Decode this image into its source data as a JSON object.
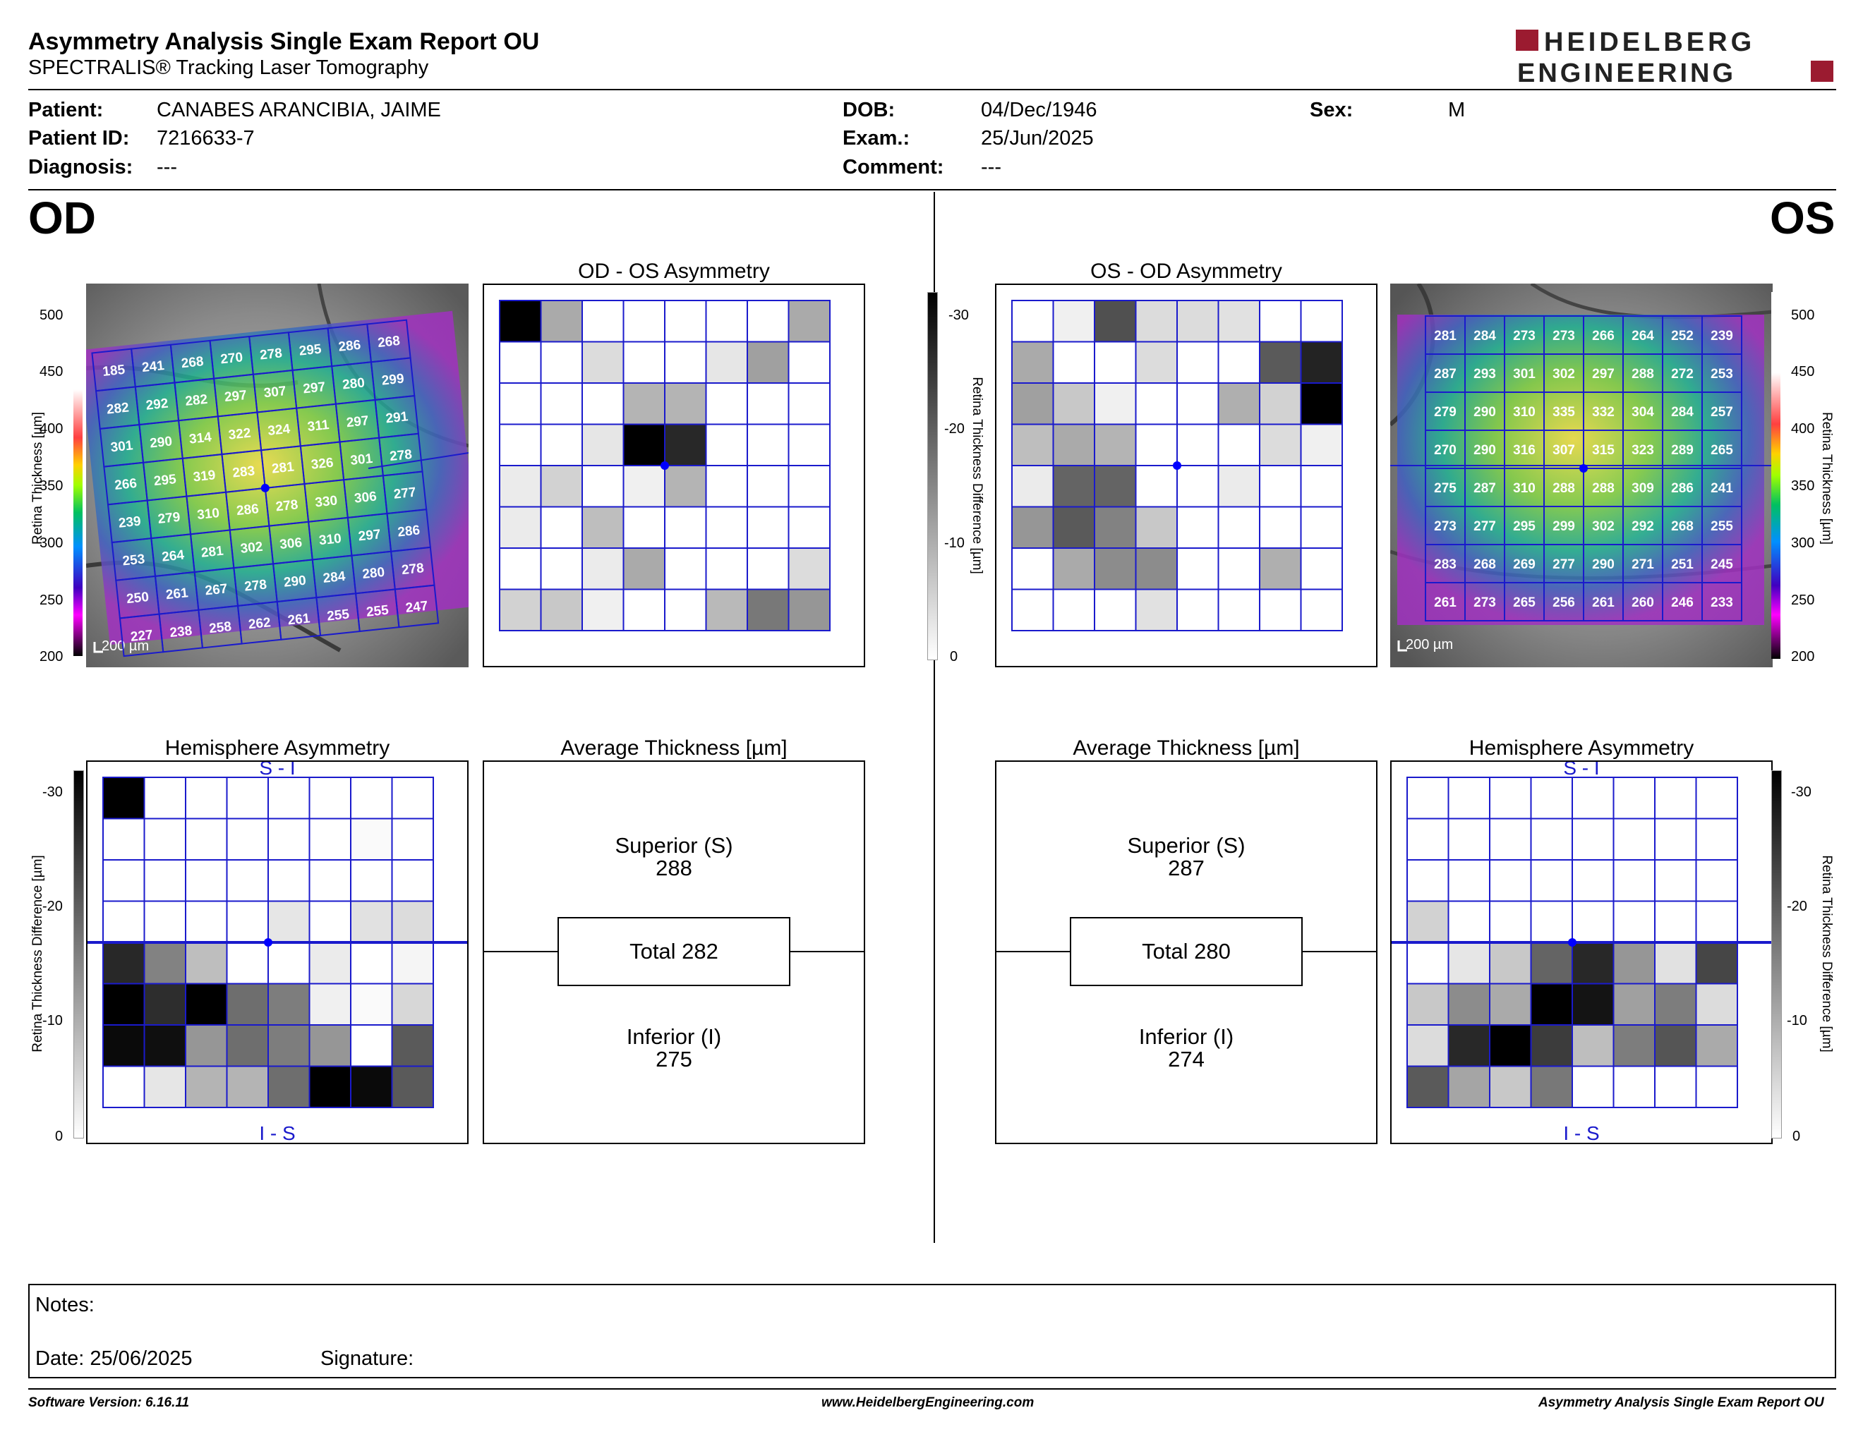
{
  "header": {
    "title": "Asymmetry Analysis Single Exam Report OU",
    "subtitle": "SPECTRALIS® Tracking Laser Tomography",
    "logo_line1": "HEIDELBERG",
    "logo_line2": "ENGINEERING",
    "brand_color": "#9b1b30"
  },
  "patient": {
    "patient_label": "Patient:",
    "patient_value": "CANABES ARANCIBIA, JAIME",
    "patient_id_label": "Patient ID:",
    "patient_id_value": "7216633-7",
    "diagnosis_label": "Diagnosis:",
    "diagnosis_value": "---",
    "dob_label": "DOB:",
    "dob_value": "04/Dec/1946",
    "exam_label": "Exam.:",
    "exam_value": "25/Jun/2025",
    "comment_label": "Comment:",
    "comment_value": "---",
    "sex_label": "Sex:",
    "sex_value": "M"
  },
  "od": {
    "eye_label": "OD",
    "scale_bar": "200 µm",
    "thickness_axis": {
      "label": "Retina Thickness [µm]",
      "ticks": [
        "500",
        "450",
        "400",
        "350",
        "300",
        "250",
        "200"
      ]
    },
    "grid_values": [
      [
        185,
        241,
        268,
        270,
        278,
        295,
        286,
        268
      ],
      [
        282,
        292,
        282,
        297,
        307,
        297,
        280,
        299
      ],
      [
        301,
        290,
        314,
        322,
        324,
        311,
        297,
        291
      ],
      [
        266,
        295,
        319,
        283,
        281,
        326,
        301,
        278
      ],
      [
        239,
        279,
        310,
        286,
        278,
        330,
        306,
        277
      ],
      [
        253,
        264,
        281,
        302,
        306,
        310,
        297,
        286
      ],
      [
        250,
        261,
        267,
        278,
        290,
        284,
        280,
        278
      ],
      [
        227,
        238,
        258,
        262,
        261,
        255,
        255,
        247
      ]
    ],
    "asym_title": "OD - OS Asymmetry",
    "asym_grays": [
      [
        0,
        170,
        255,
        255,
        255,
        255,
        255,
        170
      ],
      [
        255,
        255,
        220,
        255,
        255,
        230,
        160,
        255
      ],
      [
        255,
        255,
        255,
        180,
        180,
        255,
        255,
        255
      ],
      [
        255,
        255,
        230,
        0,
        40,
        255,
        255,
        255
      ],
      [
        235,
        210,
        255,
        240,
        180,
        255,
        255,
        255
      ],
      [
        235,
        255,
        190,
        255,
        255,
        255,
        255,
        255
      ],
      [
        255,
        255,
        235,
        170,
        255,
        255,
        255,
        220
      ],
      [
        210,
        200,
        240,
        255,
        255,
        185,
        120,
        150
      ]
    ],
    "hemi_title": "Hemisphere Asymmetry",
    "hemi_top_label": "S - I",
    "hemi_bottom_label": "I - S",
    "hemi_grays": [
      [
        0,
        255,
        255,
        255,
        255,
        255,
        255,
        255
      ],
      [
        255,
        255,
        255,
        255,
        255,
        255,
        250,
        255
      ],
      [
        255,
        255,
        255,
        255,
        255,
        255,
        255,
        255
      ],
      [
        255,
        255,
        255,
        255,
        230,
        255,
        225,
        220
      ],
      [
        40,
        130,
        190,
        255,
        255,
        235,
        255,
        245
      ],
      [
        0,
        45,
        0,
        110,
        125,
        240,
        250,
        215
      ],
      [
        10,
        15,
        150,
        110,
        125,
        150,
        255,
        90
      ],
      [
        255,
        230,
        180,
        180,
        110,
        0,
        10,
        90
      ]
    ],
    "avg_title": "Average Thickness [µm]",
    "superior_label": "Superior (S)",
    "superior_value": "288",
    "total_label": "Total 282",
    "inferior_label": "Inferior (I)",
    "inferior_value": "275"
  },
  "os": {
    "eye_label": "OS",
    "scale_bar": "200 µm",
    "thickness_axis": {
      "label": "Retina Thickness [µm]",
      "ticks": [
        "500",
        "450",
        "400",
        "350",
        "300",
        "250",
        "200"
      ]
    },
    "grid_values": [
      [
        281,
        284,
        273,
        273,
        266,
        264,
        252,
        239
      ],
      [
        287,
        293,
        301,
        302,
        297,
        288,
        272,
        253
      ],
      [
        279,
        290,
        310,
        335,
        332,
        304,
        284,
        257
      ],
      [
        270,
        290,
        316,
        307,
        315,
        323,
        289,
        265
      ],
      [
        275,
        287,
        310,
        288,
        288,
        309,
        286,
        241
      ],
      [
        273,
        277,
        295,
        299,
        302,
        292,
        268,
        255
      ],
      [
        283,
        268,
        269,
        277,
        290,
        271,
        251,
        245
      ],
      [
        261,
        273,
        265,
        256,
        261,
        260,
        246,
        233
      ]
    ],
    "asym_title": "OS - OD Asymmetry",
    "asym_grays": [
      [
        255,
        240,
        80,
        220,
        220,
        225,
        255,
        255
      ],
      [
        170,
        255,
        255,
        220,
        255,
        255,
        90,
        35
      ],
      [
        160,
        200,
        240,
        255,
        255,
        175,
        210,
        0
      ],
      [
        190,
        170,
        180,
        255,
        255,
        255,
        220,
        240
      ],
      [
        235,
        100,
        100,
        255,
        255,
        235,
        255,
        255
      ],
      [
        150,
        90,
        130,
        200,
        255,
        255,
        255,
        255
      ],
      [
        255,
        170,
        140,
        140,
        255,
        255,
        175,
        255
      ],
      [
        255,
        255,
        255,
        225,
        255,
        255,
        255,
        255
      ]
    ],
    "hemi_title": "Hemisphere Asymmetry",
    "hemi_top_label": "S - I",
    "hemi_bottom_label": "I - S",
    "hemi_grays": [
      [
        255,
        255,
        255,
        255,
        255,
        255,
        255,
        255
      ],
      [
        255,
        255,
        255,
        255,
        255,
        255,
        255,
        255
      ],
      [
        255,
        255,
        255,
        255,
        255,
        255,
        255,
        255
      ],
      [
        210,
        255,
        255,
        255,
        255,
        255,
        255,
        255
      ],
      [
        255,
        230,
        200,
        100,
        40,
        150,
        225,
        70
      ],
      [
        200,
        140,
        170,
        0,
        20,
        160,
        125,
        220
      ],
      [
        220,
        40,
        0,
        60,
        190,
        125,
        85,
        170
      ],
      [
        90,
        165,
        200,
        120,
        255,
        255,
        255,
        255
      ]
    ],
    "avg_title": "Average Thickness [µm]",
    "superior_label": "Superior (S)",
    "superior_value": "287",
    "total_label": "Total 280",
    "inferior_label": "Inferior (I)",
    "inferior_value": "274"
  },
  "asym_scale": {
    "label": "Retina Thickness Difference [µm]",
    "ticks": [
      "-30",
      "-20",
      "-10",
      "0"
    ]
  },
  "hemi_scale": {
    "label": "Retina Thickness Difference [µm]",
    "ticks": [
      "-30",
      "-20",
      "-10",
      "0"
    ]
  },
  "notes": {
    "notes_label": "Notes:",
    "date_label": "Date: 25/06/2025",
    "signature_label": "Signature:"
  },
  "footer": {
    "software": "Software Version: 6.16.11",
    "website": "www.HeidelbergEngineering.com",
    "report_name": "Asymmetry Analysis Single Exam Report OU"
  },
  "colors": {
    "grid_line": "#1a1acc",
    "fovea_dot": "#0000ff"
  }
}
